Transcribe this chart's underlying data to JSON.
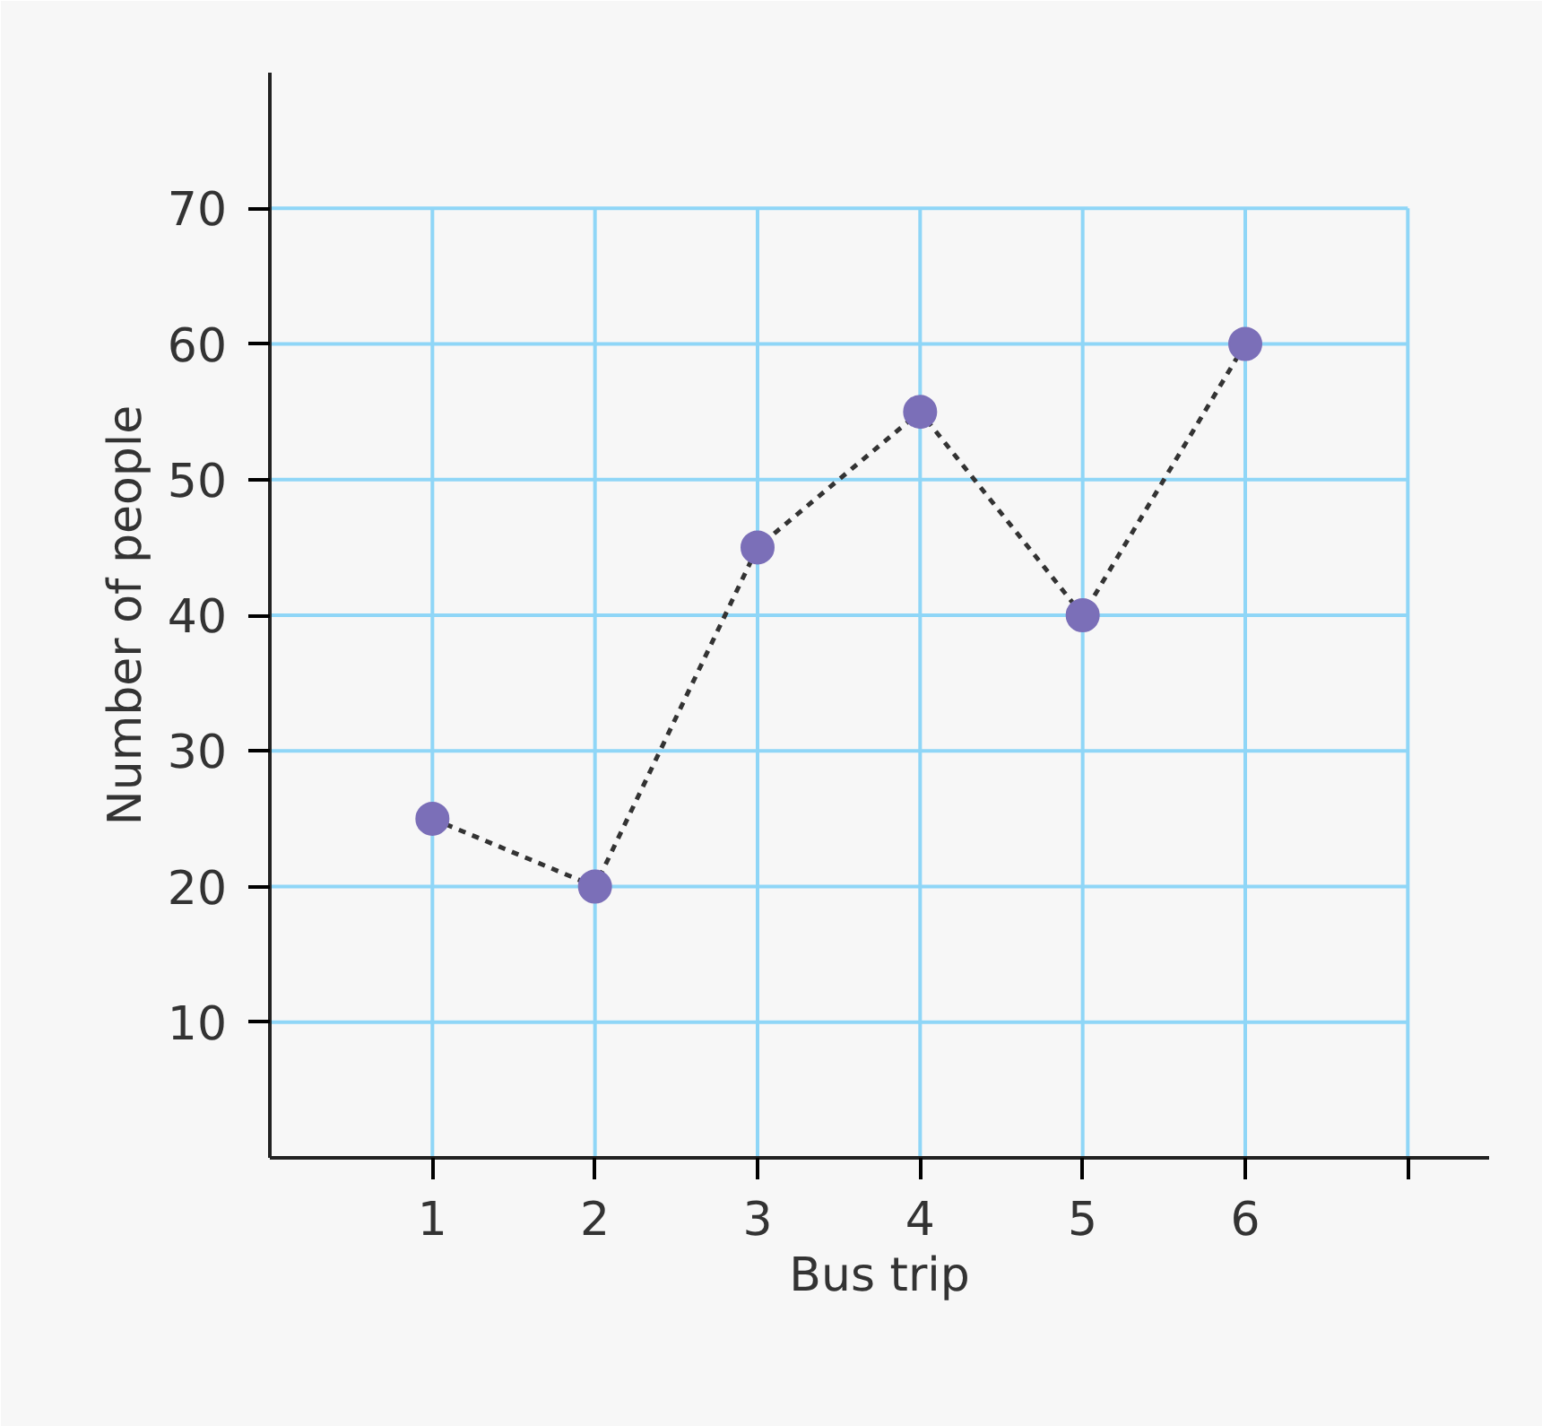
{
  "chart_data": {
    "type": "line",
    "xlabel": "Bus trip",
    "ylabel": "Number of people",
    "x": [
      1,
      2,
      3,
      4,
      5,
      6
    ],
    "series": [
      {
        "color": "#7b6fb8",
        "values": [
          25,
          20,
          45,
          55,
          40,
          60
        ]
      }
    ],
    "line_style": "dashed",
    "marker": "circle",
    "xlim": [
      0,
      7.5
    ],
    "ylim": [
      0,
      80
    ],
    "xticks": [
      1,
      2,
      3,
      4,
      5,
      6,
      {
        "value": 7,
        "label": null
      }
    ],
    "yticks": [
      10,
      20,
      30,
      40,
      50,
      60,
      70
    ],
    "grid": true
  }
}
